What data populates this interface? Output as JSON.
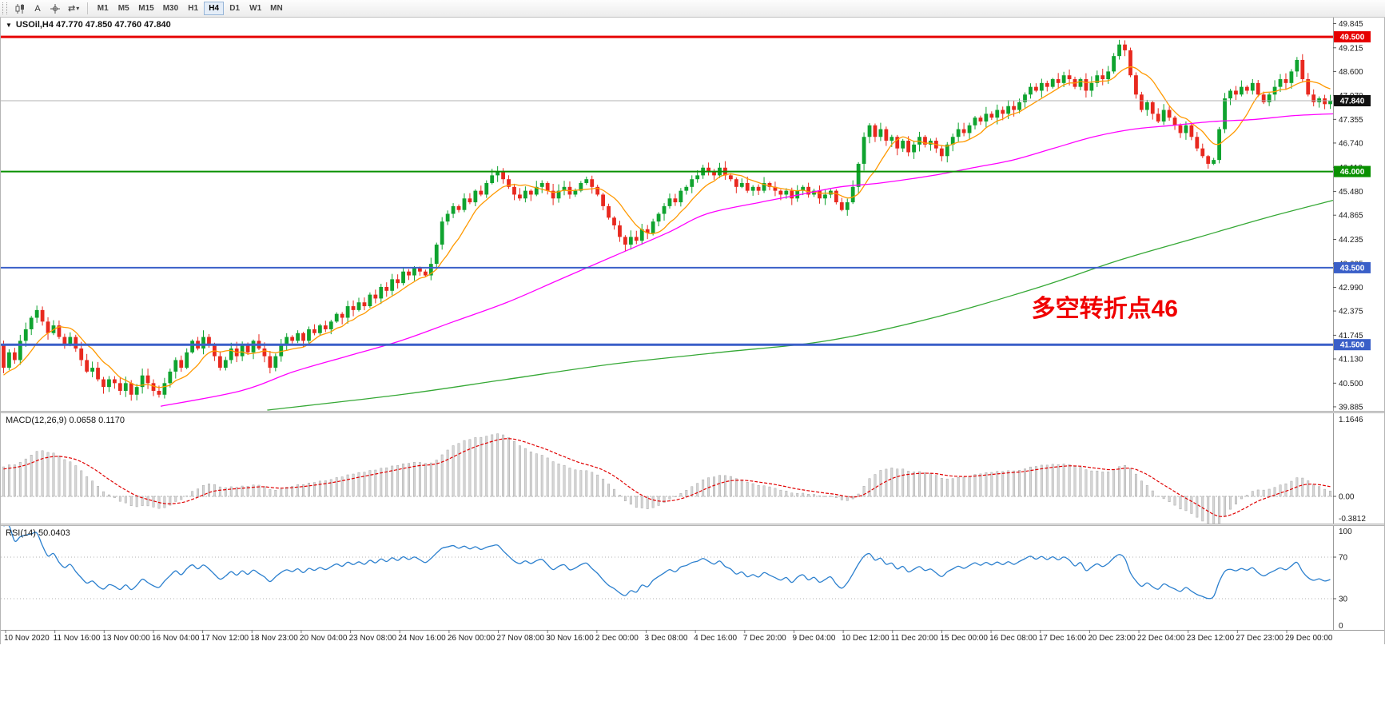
{
  "icons": {
    "collapse_arrow": "▼",
    "cycle_arrows": "⇄",
    "dropdown_caret": "▾"
  },
  "toolbar": {
    "a_label": "A",
    "timeframes": [
      {
        "label": "M1",
        "active": false
      },
      {
        "label": "M5",
        "active": false
      },
      {
        "label": "M15",
        "active": false
      },
      {
        "label": "M30",
        "active": false
      },
      {
        "label": "H1",
        "active": false
      },
      {
        "label": "H4",
        "active": true
      },
      {
        "label": "D1",
        "active": false
      },
      {
        "label": "W1",
        "active": false
      },
      {
        "label": "MN",
        "active": false
      }
    ]
  },
  "chart_data": {
    "type": "candlestick",
    "symbol": "USOil",
    "timeframe": "H4",
    "symbol_line": "USOil,H4 47.770 47.850 47.760 47.840",
    "ohlc_display": {
      "open": "47.770",
      "high": "47.850",
      "low": "47.760",
      "close": "47.840"
    },
    "candle_colors": {
      "bull": "#0fa32f",
      "bear": "#e8291f"
    },
    "price_axis": {
      "min": 39.78,
      "max": 50.0,
      "ticks": [
        "49.845",
        "49.215",
        "48.600",
        "47.970",
        "47.355",
        "46.740",
        "46.110",
        "45.480",
        "44.865",
        "44.235",
        "43.605",
        "42.990",
        "42.375",
        "41.745",
        "41.130",
        "40.500",
        "39.885"
      ]
    },
    "time_labels": [
      "10 Nov 2020",
      "11 Nov 16:00",
      "13 Nov 00:00",
      "16 Nov 04:00",
      "17 Nov 12:00",
      "18 Nov 23:00",
      "20 Nov 04:00",
      "23 Nov 08:00",
      "24 Nov 16:00",
      "26 Nov 00:00",
      "27 Nov 08:00",
      "30 Nov 16:00",
      "2 Dec 00:00",
      "3 Dec 08:00",
      "4 Dec 16:00",
      "7 Dec 20:00",
      "9 Dec 04:00",
      "10 Dec 12:00",
      "11 Dec 20:00",
      "15 Dec 00:00",
      "16 Dec 08:00",
      "17 Dec 16:00",
      "20 Dec 23:00",
      "22 Dec 04:00",
      "23 Dec 12:00",
      "27 Dec 23:00",
      "29 Dec 00:00"
    ],
    "first_open": 41.5,
    "warmup": {
      "bars": 30,
      "start_price": 38.8
    },
    "closes": [
      40.9,
      41.3,
      41.1,
      41.6,
      41.9,
      42.2,
      42.4,
      42.1,
      41.8,
      42.0,
      41.7,
      41.5,
      41.7,
      41.4,
      41.1,
      40.8,
      40.9,
      40.6,
      40.4,
      40.6,
      40.5,
      40.3,
      40.5,
      40.2,
      40.4,
      40.7,
      40.5,
      40.3,
      40.2,
      40.5,
      40.8,
      41.1,
      40.9,
      41.3,
      41.6,
      41.4,
      41.7,
      41.5,
      41.2,
      40.9,
      41.1,
      41.4,
      41.2,
      41.5,
      41.3,
      41.6,
      41.4,
      41.2,
      40.9,
      41.2,
      41.5,
      41.7,
      41.6,
      41.8,
      41.6,
      41.9,
      41.8,
      42.0,
      41.9,
      42.1,
      42.3,
      42.2,
      42.5,
      42.4,
      42.6,
      42.5,
      42.8,
      42.7,
      43.0,
      42.9,
      43.2,
      43.1,
      43.4,
      43.3,
      43.5,
      43.4,
      43.3,
      43.6,
      44.1,
      44.7,
      44.9,
      45.1,
      45.0,
      45.3,
      45.2,
      45.5,
      45.4,
      45.7,
      45.9,
      46.0,
      45.8,
      45.6,
      45.4,
      45.3,
      45.5,
      45.4,
      45.6,
      45.7,
      45.5,
      45.3,
      45.5,
      45.6,
      45.4,
      45.5,
      45.7,
      45.8,
      45.6,
      45.4,
      45.1,
      44.8,
      44.6,
      44.3,
      44.1,
      44.3,
      44.2,
      44.5,
      44.4,
      44.7,
      44.9,
      45.1,
      45.3,
      45.2,
      45.5,
      45.6,
      45.8,
      45.9,
      46.1,
      46.0,
      45.9,
      46.1,
      45.9,
      45.8,
      45.6,
      45.7,
      45.5,
      45.6,
      45.5,
      45.7,
      45.6,
      45.5,
      45.4,
      45.5,
      45.3,
      45.5,
      45.6,
      45.4,
      45.5,
      45.3,
      45.4,
      45.5,
      45.2,
      45.0,
      45.2,
      45.6,
      46.2,
      46.9,
      47.2,
      46.9,
      47.1,
      46.8,
      46.9,
      46.6,
      46.8,
      46.5,
      46.7,
      46.9,
      46.7,
      46.8,
      46.6,
      46.4,
      46.7,
      46.9,
      47.1,
      47.0,
      47.2,
      47.4,
      47.3,
      47.5,
      47.4,
      47.6,
      47.5,
      47.7,
      47.6,
      47.8,
      48.0,
      48.2,
      48.1,
      48.3,
      48.2,
      48.4,
      48.3,
      48.5,
      48.4,
      48.2,
      48.4,
      48.1,
      48.3,
      48.5,
      48.4,
      48.6,
      49.0,
      49.3,
      49.15,
      48.5,
      48.0,
      47.6,
      47.8,
      47.5,
      47.3,
      47.6,
      47.4,
      47.2,
      47.0,
      47.2,
      46.9,
      46.6,
      46.4,
      46.2,
      46.3,
      47.1,
      47.9,
      48.1,
      48.0,
      48.2,
      48.1,
      48.3,
      48.0,
      47.8,
      48.0,
      48.2,
      48.4,
      48.3,
      48.6,
      48.9,
      48.4,
      48.0,
      47.8,
      47.9,
      47.75,
      47.84
    ],
    "moving_averages": [
      {
        "name": "fast-ma",
        "color": "#ff9900",
        "render": "sma",
        "period": 8
      },
      {
        "name": "medium-ma",
        "color": "#ff00ff",
        "render": "waypoints",
        "points": [
          [
            0.12,
            39.9
          ],
          [
            0.18,
            40.3
          ],
          [
            0.22,
            40.8
          ],
          [
            0.26,
            41.2
          ],
          [
            0.3,
            41.6
          ],
          [
            0.34,
            42.1
          ],
          [
            0.38,
            42.6
          ],
          [
            0.42,
            43.2
          ],
          [
            0.46,
            43.8
          ],
          [
            0.5,
            44.4
          ],
          [
            0.53,
            44.9
          ],
          [
            0.57,
            45.2
          ],
          [
            0.6,
            45.4
          ],
          [
            0.63,
            45.6
          ],
          [
            0.66,
            45.7
          ],
          [
            0.7,
            45.9
          ],
          [
            0.73,
            46.1
          ],
          [
            0.76,
            46.3
          ],
          [
            0.79,
            46.6
          ],
          [
            0.82,
            46.9
          ],
          [
            0.85,
            47.1
          ],
          [
            0.88,
            47.2
          ],
          [
            0.91,
            47.3
          ],
          [
            0.94,
            47.35
          ],
          [
            0.97,
            47.45
          ],
          [
            1.0,
            47.5
          ]
        ]
      },
      {
        "name": "slow-ma",
        "color": "#35a835",
        "render": "waypoints",
        "points": [
          [
            0.2,
            39.8
          ],
          [
            0.3,
            40.2
          ],
          [
            0.38,
            40.6
          ],
          [
            0.46,
            41.0
          ],
          [
            0.54,
            41.3
          ],
          [
            0.62,
            41.6
          ],
          [
            0.7,
            42.2
          ],
          [
            0.78,
            43.0
          ],
          [
            0.84,
            43.7
          ],
          [
            0.9,
            44.3
          ],
          [
            0.95,
            44.8
          ],
          [
            1.0,
            45.25
          ]
        ]
      }
    ],
    "horizontal_lines": [
      {
        "price": 49.5,
        "color": "#e60000",
        "label": "49.500",
        "width": 3
      },
      {
        "price": 46.0,
        "color": "#089000",
        "label": "46.000",
        "width": 2
      },
      {
        "price": 43.5,
        "color": "#3a5fc8",
        "label": "43.500",
        "width": 2
      },
      {
        "price": 41.5,
        "color": "#3a5fc8",
        "label": "41.500",
        "width": 3
      }
    ],
    "current_price": {
      "value": 47.84,
      "label": "47.840",
      "line_color": "#b0b0b0",
      "badge_color": "#101010"
    },
    "annotation": {
      "text": "多空转折点46",
      "color": "#f00000",
      "x_frac": 0.745,
      "y_price": 42.95
    },
    "indicators": [
      {
        "name": "MACD",
        "label": "MACD(12,26,9) 0.0658 0.1170",
        "params": [
          12,
          26,
          9
        ],
        "values_text": [
          "0.0658",
          "0.1170"
        ],
        "axis_ticks": [
          "1.1646",
          "0.00",
          "-0.3812"
        ],
        "range": [
          -0.3812,
          1.1646
        ],
        "histogram_color": "#d6d6d6",
        "histogram_border": "#a8a8a8",
        "signal_color": "#e00000"
      },
      {
        "name": "RSI",
        "label": "RSI(14) 50.0403",
        "period": 14,
        "value_text": "50.0403",
        "axis_ticks": [
          "100",
          "70",
          "30",
          "0"
        ],
        "levels": [
          70,
          30
        ],
        "range": [
          0,
          100
        ],
        "line_color": "#2a7fce"
      }
    ]
  }
}
